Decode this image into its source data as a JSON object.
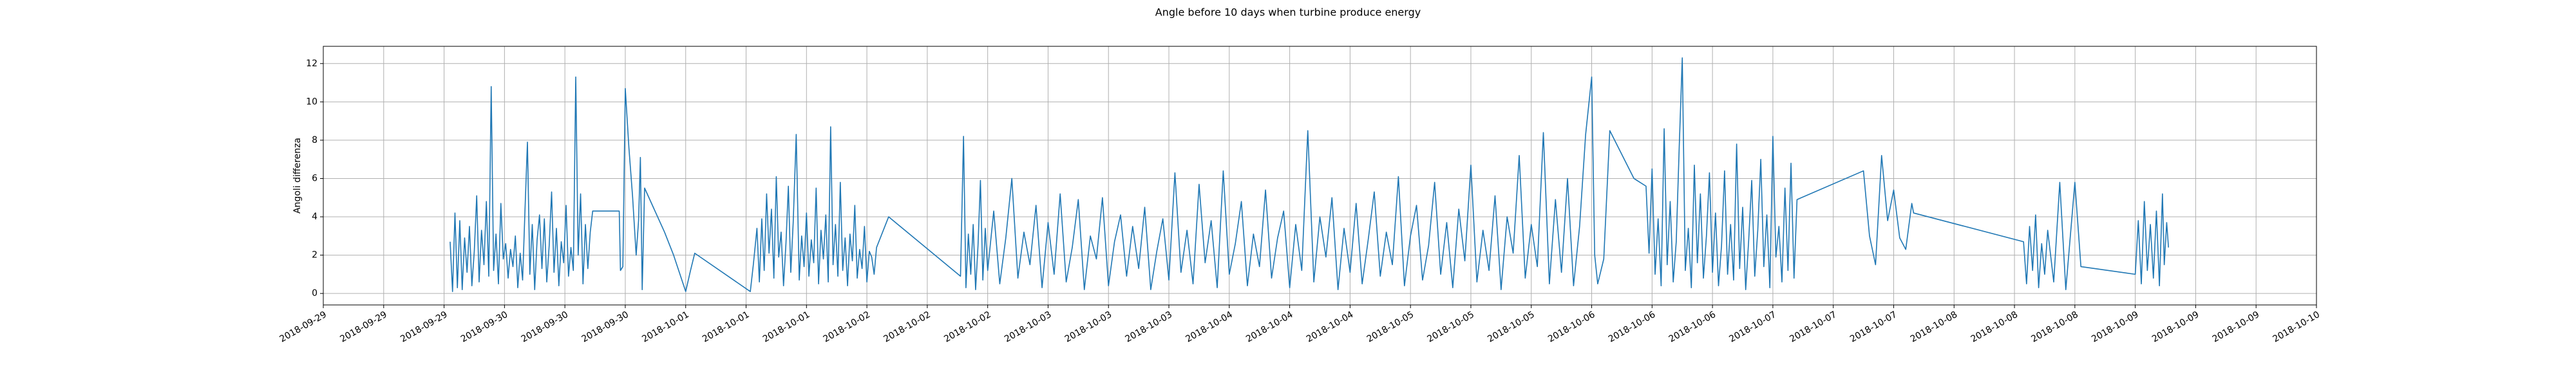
{
  "chart_data": {
    "type": "line",
    "title": "Angle before 10 days when turbine produce energy",
    "y_label": "Angoli differenza",
    "grid": true,
    "color": "#1f77b4",
    "xlim": [
      0,
      33
    ],
    "ylim": [
      -0.6,
      12.9
    ],
    "yticks": [
      0,
      2,
      4,
      6,
      8,
      10,
      12
    ],
    "xticks": [
      {
        "value": 0,
        "label": "2018-09-29"
      },
      {
        "value": 1,
        "label": "2018-09-29"
      },
      {
        "value": 2,
        "label": "2018-09-29"
      },
      {
        "value": 3,
        "label": "2018-09-30"
      },
      {
        "value": 4,
        "label": "2018-09-30"
      },
      {
        "value": 5,
        "label": "2018-09-30"
      },
      {
        "value": 6,
        "label": "2018-10-01"
      },
      {
        "value": 7,
        "label": "2018-10-01"
      },
      {
        "value": 8,
        "label": "2018-10-01"
      },
      {
        "value": 9,
        "label": "2018-10-02"
      },
      {
        "value": 10,
        "label": "2018-10-02"
      },
      {
        "value": 11,
        "label": "2018-10-02"
      },
      {
        "value": 12,
        "label": "2018-10-03"
      },
      {
        "value": 13,
        "label": "2018-10-03"
      },
      {
        "value": 14,
        "label": "2018-10-03"
      },
      {
        "value": 15,
        "label": "2018-10-04"
      },
      {
        "value": 16,
        "label": "2018-10-04"
      },
      {
        "value": 17,
        "label": "2018-10-04"
      },
      {
        "value": 18,
        "label": "2018-10-05"
      },
      {
        "value": 19,
        "label": "2018-10-05"
      },
      {
        "value": 20,
        "label": "2018-10-05"
      },
      {
        "value": 21,
        "label": "2018-10-06"
      },
      {
        "value": 22,
        "label": "2018-10-06"
      },
      {
        "value": 23,
        "label": "2018-10-06"
      },
      {
        "value": 24,
        "label": "2018-10-07"
      },
      {
        "value": 25,
        "label": "2018-10-07"
      },
      {
        "value": 26,
        "label": "2018-10-07"
      },
      {
        "value": 27,
        "label": "2018-10-08"
      },
      {
        "value": 28,
        "label": "2018-10-08"
      },
      {
        "value": 29,
        "label": "2018-10-08"
      },
      {
        "value": 30,
        "label": "2018-10-09"
      },
      {
        "value": 31,
        "label": "2018-10-09"
      },
      {
        "value": 32,
        "label": "2018-10-09"
      },
      {
        "value": 33,
        "label": "2018-10-10"
      }
    ],
    "x": [
      2.1,
      2.14,
      2.18,
      2.22,
      2.26,
      2.3,
      2.34,
      2.38,
      2.42,
      2.46,
      2.5,
      2.54,
      2.58,
      2.62,
      2.66,
      2.7,
      2.74,
      2.78,
      2.82,
      2.86,
      2.9,
      2.94,
      2.98,
      3.02,
      3.06,
      3.1,
      3.14,
      3.18,
      3.22,
      3.26,
      3.3,
      3.34,
      3.38,
      3.42,
      3.46,
      3.5,
      3.54,
      3.58,
      3.62,
      3.66,
      3.7,
      3.74,
      3.78,
      3.82,
      3.86,
      3.9,
      3.94,
      3.98,
      4.02,
      4.06,
      4.1,
      4.14,
      4.18,
      4.22,
      4.26,
      4.3,
      4.34,
      4.38,
      4.42,
      4.46,
      4.9,
      4.92,
      4.96,
      5.0,
      5.06,
      5.12,
      5.18,
      5.22,
      5.25,
      5.28,
      5.32,
      5.65,
      5.8,
      6.0,
      6.08,
      6.15,
      7.07,
      7.12,
      7.18,
      7.22,
      7.26,
      7.3,
      7.34,
      7.38,
      7.42,
      7.46,
      7.5,
      7.54,
      7.58,
      7.62,
      7.66,
      7.7,
      7.74,
      7.78,
      7.83,
      7.88,
      7.92,
      7.96,
      8.0,
      8.04,
      8.08,
      8.12,
      8.16,
      8.2,
      8.24,
      8.28,
      8.32,
      8.36,
      8.4,
      8.44,
      8.48,
      8.52,
      8.56,
      8.6,
      8.64,
      8.68,
      8.72,
      8.76,
      8.8,
      8.84,
      8.88,
      8.92,
      8.96,
      9.0,
      9.04,
      9.08,
      9.12,
      9.16,
      9.36,
      10.55,
      10.6,
      10.64,
      10.68,
      10.72,
      10.76,
      10.8,
      10.84,
      10.88,
      10.92,
      10.96,
      11.0,
      11.1,
      11.2,
      11.3,
      11.4,
      11.5,
      11.6,
      11.7,
      11.8,
      11.9,
      12.0,
      12.1,
      12.2,
      12.3,
      12.4,
      12.5,
      12.6,
      12.7,
      12.8,
      12.9,
      13.0,
      13.1,
      13.2,
      13.3,
      13.4,
      13.5,
      13.6,
      13.7,
      13.8,
      13.9,
      14.0,
      14.1,
      14.2,
      14.3,
      14.4,
      14.5,
      14.6,
      14.7,
      14.8,
      14.9,
      15.0,
      15.1,
      15.2,
      15.3,
      15.4,
      15.5,
      15.6,
      15.7,
      15.8,
      15.9,
      16.0,
      16.1,
      16.2,
      16.3,
      16.4,
      16.5,
      16.6,
      16.7,
      16.8,
      16.9,
      17.0,
      17.1,
      17.2,
      17.3,
      17.4,
      17.5,
      17.6,
      17.7,
      17.8,
      17.9,
      18.0,
      18.1,
      18.2,
      18.3,
      18.4,
      18.5,
      18.6,
      18.7,
      18.8,
      18.9,
      19.0,
      19.1,
      19.2,
      19.3,
      19.4,
      19.5,
      19.6,
      19.7,
      19.8,
      19.9,
      20.0,
      20.1,
      20.2,
      20.3,
      20.4,
      20.5,
      20.6,
      20.7,
      20.8,
      20.9,
      21.0,
      21.05,
      21.1,
      21.2,
      21.3,
      21.7,
      21.9,
      21.95,
      22.0,
      22.05,
      22.1,
      22.15,
      22.2,
      22.25,
      22.3,
      22.35,
      22.4,
      22.45,
      22.5,
      22.55,
      22.6,
      22.65,
      22.7,
      22.75,
      22.8,
      22.85,
      22.9,
      22.95,
      23.0,
      23.05,
      23.1,
      23.15,
      23.2,
      23.25,
      23.3,
      23.35,
      23.4,
      23.45,
      23.5,
      23.55,
      23.6,
      23.65,
      23.7,
      23.75,
      23.8,
      23.85,
      23.9,
      23.95,
      24.0,
      24.05,
      24.1,
      24.15,
      24.2,
      24.25,
      24.3,
      24.35,
      24.4,
      25.5,
      25.6,
      25.7,
      25.8,
      25.9,
      26.0,
      26.1,
      26.2,
      26.3,
      26.33,
      28.15,
      28.2,
      28.25,
      28.3,
      28.35,
      28.4,
      28.45,
      28.5,
      28.55,
      28.65,
      28.75,
      28.85,
      29.0,
      29.1,
      30.0,
      30.05,
      30.1,
      30.15,
      30.2,
      30.25,
      30.3,
      30.35,
      30.4,
      30.45,
      30.48,
      30.52,
      30.55
    ],
    "values": [
      2.7,
      0.1,
      4.2,
      0.3,
      3.8,
      0.2,
      2.9,
      1.1,
      3.5,
      0.4,
      2.2,
      5.1,
      0.6,
      3.3,
      1.5,
      4.8,
      0.9,
      10.8,
      1.2,
      3.1,
      0.5,
      4.7,
      1.8,
      2.6,
      0.8,
      2.3,
      1.4,
      3.0,
      0.3,
      2.1,
      0.7,
      4.4,
      7.9,
      1.0,
      3.6,
      0.2,
      2.8,
      4.1,
      1.3,
      3.9,
      0.6,
      2.5,
      5.3,
      1.1,
      3.4,
      0.4,
      2.7,
      1.6,
      4.6,
      0.9,
      2.4,
      1.2,
      11.3,
      2.0,
      5.2,
      0.5,
      3.6,
      1.3,
      3.2,
      4.3,
      4.3,
      1.2,
      1.4,
      10.7,
      7.6,
      5.1,
      2.0,
      3.8,
      7.1,
      0.2,
      5.5,
      3.2,
      2.0,
      0.1,
      1.2,
      2.1,
      0.1,
      1.5,
      3.4,
      0.6,
      3.9,
      1.2,
      5.2,
      2.1,
      4.4,
      0.8,
      6.1,
      1.9,
      3.2,
      0.4,
      2.6,
      5.6,
      1.1,
      3.7,
      8.3,
      0.7,
      3.0,
      1.4,
      4.2,
      0.9,
      2.8,
      1.6,
      5.5,
      0.5,
      3.3,
      1.8,
      4.1,
      0.6,
      8.7,
      1.5,
      3.6,
      0.9,
      5.8,
      1.2,
      2.9,
      0.4,
      3.1,
      1.7,
      4.6,
      0.8,
      2.3,
      1.3,
      3.5,
      0.6,
      2.2,
      1.9,
      1.0,
      2.4,
      4.0,
      0.9,
      8.2,
      0.3,
      3.1,
      1.0,
      3.6,
      0.2,
      2.5,
      5.9,
      0.7,
      3.4,
      1.2,
      4.3,
      0.5,
      2.9,
      6.0,
      0.8,
      3.2,
      1.5,
      4.6,
      0.3,
      3.7,
      1.0,
      5.2,
      0.6,
      2.4,
      4.9,
      0.2,
      3.0,
      1.8,
      5.0,
      0.4,
      2.7,
      4.1,
      0.9,
      3.5,
      1.3,
      4.5,
      0.2,
      2.2,
      3.9,
      0.7,
      6.3,
      1.1,
      3.3,
      0.5,
      5.7,
      1.6,
      3.8,
      0.3,
      6.4,
      1.0,
      2.6,
      4.8,
      0.4,
      3.1,
      1.4,
      5.4,
      0.8,
      2.9,
      4.3,
      0.3,
      3.6,
      1.2,
      8.5,
      0.6,
      4.0,
      1.9,
      5.0,
      0.2,
      3.4,
      1.1,
      4.7,
      0.5,
      2.8,
      5.3,
      0.9,
      3.2,
      1.5,
      6.1,
      0.4,
      3.0,
      4.6,
      0.7,
      2.5,
      5.8,
      1.0,
      3.7,
      0.3,
      4.4,
      1.7,
      6.7,
      0.6,
      3.3,
      1.2,
      5.1,
      0.2,
      4.0,
      2.1,
      7.2,
      0.8,
      3.6,
      1.4,
      8.4,
      0.5,
      4.9,
      1.1,
      6.0,
      0.4,
      3.5,
      8.3,
      11.3,
      2.0,
      0.5,
      1.8,
      8.5,
      6.0,
      5.6,
      2.1,
      6.5,
      1.0,
      3.9,
      0.4,
      8.6,
      1.5,
      4.8,
      0.6,
      2.7,
      7.7,
      12.3,
      1.2,
      3.4,
      0.3,
      6.7,
      1.6,
      5.2,
      0.8,
      3.0,
      6.3,
      1.1,
      4.2,
      0.4,
      2.5,
      6.4,
      1.0,
      3.6,
      0.7,
      7.8,
      1.3,
      4.5,
      0.2,
      2.8,
      5.9,
      0.9,
      3.3,
      7.0,
      1.4,
      4.1,
      0.3,
      8.2,
      1.9,
      3.5,
      0.6,
      5.5,
      1.2,
      6.8,
      0.8,
      4.9,
      6.4,
      3.0,
      1.5,
      7.2,
      3.8,
      5.4,
      2.9,
      2.3,
      4.7,
      4.2,
      2.7,
      0.5,
      3.5,
      1.2,
      4.1,
      0.3,
      2.6,
      1.0,
      3.3,
      0.6,
      5.8,
      0.2,
      5.8,
      1.4,
      1.0,
      3.8,
      0.5,
      4.8,
      1.2,
      3.6,
      0.8,
      4.3,
      0.4,
      5.2,
      1.5,
      3.7,
      2.4
    ]
  }
}
